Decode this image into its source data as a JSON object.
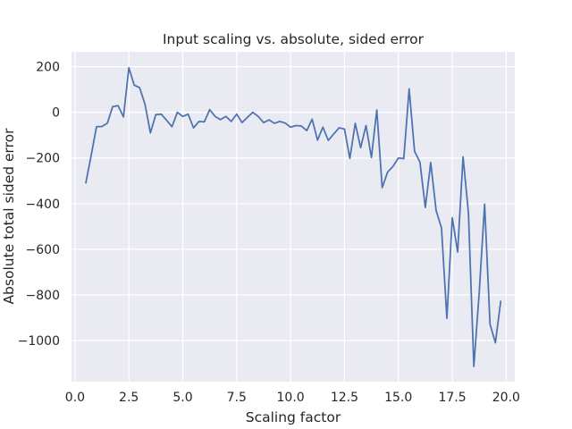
{
  "chart_data": {
    "type": "line",
    "title": "Input scaling vs. absolute, sided error",
    "xlabel": "Scaling factor",
    "ylabel": "Absolute total sided error",
    "xlim": [
      -0.16,
      20.4
    ],
    "ylim": [
      -1180,
      265
    ],
    "xticks": [
      0.0,
      2.5,
      5.0,
      7.5,
      10.0,
      12.5,
      15.0,
      17.5,
      20.0
    ],
    "xtick_labels": [
      "0.0",
      "2.5",
      "5.0",
      "7.5",
      "10.0",
      "12.5",
      "15.0",
      "17.5",
      "20.0"
    ],
    "yticks": [
      200,
      0,
      -200,
      -400,
      -600,
      -800,
      -1000
    ],
    "ytick_labels": [
      "200",
      "0",
      "−200",
      "−400",
      "−600",
      "−800",
      "−1000"
    ],
    "grid": true,
    "background": "#eaeaf2",
    "grid_color": "#ffffff",
    "line_color": "#4c72b0",
    "series": [
      {
        "x": [
          0.5,
          0.75,
          1.0,
          1.25,
          1.5,
          1.75,
          2.0,
          2.25,
          2.5,
          2.75,
          3.0,
          3.25,
          3.5,
          3.75,
          4.0,
          4.25,
          4.5,
          4.75,
          5.0,
          5.25,
          5.5,
          5.75,
          6.0,
          6.25,
          6.5,
          6.75,
          7.0,
          7.25,
          7.5,
          7.75,
          8.0,
          8.25,
          8.5,
          8.75,
          9.0,
          9.25,
          9.5,
          9.75,
          10.0,
          10.25,
          10.5,
          10.75,
          11.0,
          11.25,
          11.5,
          11.75,
          12.0,
          12.25,
          12.5,
          12.75,
          13.0,
          13.25,
          13.5,
          13.75,
          14.0,
          14.25,
          14.5,
          14.75,
          15.0,
          15.25,
          15.5,
          15.75,
          16.0,
          16.25,
          16.5,
          16.75,
          17.0,
          17.25,
          17.5,
          17.75,
          18.0,
          18.25,
          18.5,
          18.75,
          19.0,
          19.25,
          19.5,
          19.75
        ],
        "y": [
          -312,
          -190,
          -63,
          -62,
          -48,
          25,
          29,
          -20,
          195,
          119,
          108,
          35,
          -90,
          -10,
          -8,
          -35,
          -63,
          0,
          -18,
          -8,
          -68,
          -40,
          -42,
          12,
          -18,
          -32,
          -18,
          -40,
          -8,
          -45,
          -22,
          0,
          -18,
          -45,
          -33,
          -48,
          -40,
          -47,
          -65,
          -58,
          -60,
          -80,
          -30,
          -122,
          -65,
          -123,
          -95,
          -68,
          -73,
          -202,
          -48,
          -155,
          -58,
          -198,
          10,
          -330,
          -262,
          -237,
          -200,
          -203,
          103,
          -170,
          -218,
          -417,
          -220,
          -430,
          -507,
          -903,
          -462,
          -612,
          -195,
          -440,
          -1113,
          -790,
          -402,
          -928,
          -1010,
          -825
        ]
      }
    ]
  }
}
